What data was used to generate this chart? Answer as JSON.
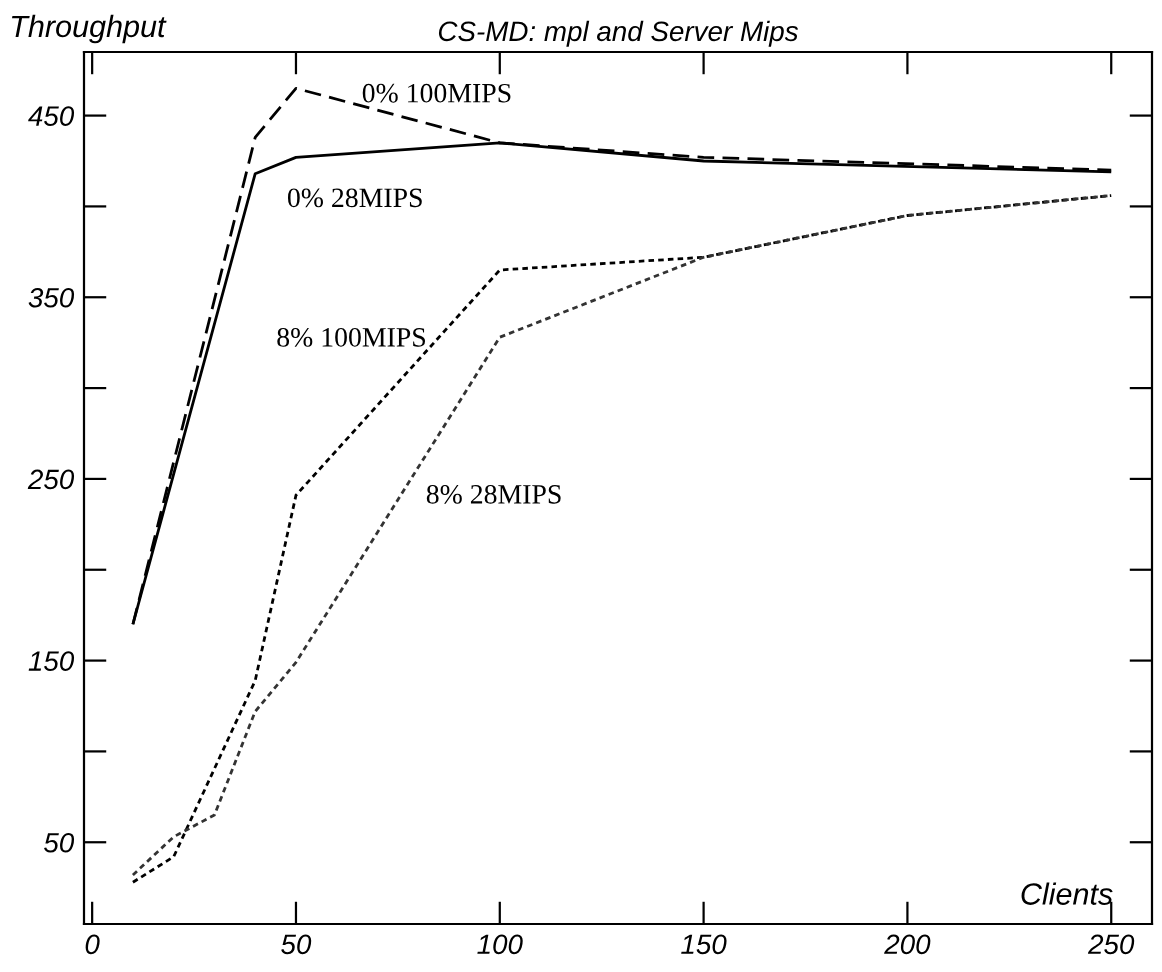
{
  "chart_data": {
    "type": "line",
    "title": "CS-MD: mpl and Server Mips",
    "xlabel": "Clients",
    "ylabel": "Throughput",
    "xlim": [
      -2,
      260
    ],
    "ylim": [
      5,
      485
    ],
    "xticks": [
      0,
      50,
      100,
      150,
      200,
      250
    ],
    "yticks": [
      50,
      {
        "value": 100,
        "label": null
      },
      150,
      {
        "value": 200,
        "label": null
      },
      250,
      {
        "value": 300,
        "label": null
      },
      350,
      {
        "value": 400,
        "label": null
      },
      450
    ],
    "grid": false,
    "legend": false,
    "marker": "none",
    "series": [
      {
        "color": "#000000",
        "line_style": "solid",
        "x": [
          10,
          40,
          50,
          100,
          150,
          250
        ],
        "values": [
          170,
          418,
          427,
          435,
          425,
          419
        ]
      },
      {
        "color": "#000000",
        "line_style": "dashed",
        "x": [
          10,
          40,
          50,
          100,
          150,
          250
        ],
        "values": [
          170,
          438,
          465,
          435,
          427,
          420
        ]
      },
      {
        "color": "#000000",
        "line_style": "dotted",
        "x": [
          10,
          20,
          40,
          50,
          100,
          150,
          200,
          250
        ],
        "values": [
          28,
          42,
          139,
          241,
          365,
          372,
          395,
          406
        ]
      },
      {
        "color": "#333333",
        "line_style": "dotted",
        "x": [
          10,
          20,
          30,
          40,
          50,
          100,
          150,
          200,
          250
        ],
        "values": [
          32,
          53,
          65,
          122,
          149,
          328,
          372,
          395,
          406
        ]
      }
    ],
    "annotations": [
      "0% 100MIPS",
      "0% 28MIPS",
      "8% 100MIPS",
      "8% 28MIPS"
    ]
  }
}
